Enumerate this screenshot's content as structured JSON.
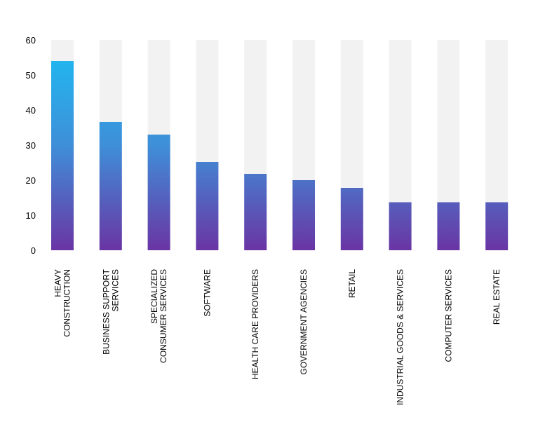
{
  "chart_data": {
    "type": "bar",
    "categories": [
      [
        "HEAVY",
        "CONSTRUCTION"
      ],
      [
        "BUSINESS SUPPORT",
        "SERVICES"
      ],
      [
        "SPECIALIZED",
        "CONSUMER SERVICES"
      ],
      [
        "SOFTWARE"
      ],
      [
        "HEALTH CARE PROVIDERS"
      ],
      [
        "GOVERNMENT AGENCIES"
      ],
      [
        "RETAIL"
      ],
      [
        "INDUSTRIAL GOODS & SERVICES"
      ],
      [
        "COMPUTER SERVICES"
      ],
      [
        "REAL ESTATE"
      ]
    ],
    "values": [
      54,
      36.6,
      33,
      25.2,
      21.8,
      20,
      17.8,
      13.7,
      13.7,
      13.7
    ],
    "background_max": 60,
    "ylim": [
      0,
      60
    ],
    "yticks": [
      "0",
      "10",
      "20",
      "30",
      "40",
      "50",
      "60"
    ],
    "title": "",
    "xlabel": "",
    "ylabel": "",
    "grid": false,
    "colors": {
      "bar_top": "#22b5ee",
      "bar_bottom": "#6a35a4",
      "background_bar": "#f2f2f2"
    }
  }
}
